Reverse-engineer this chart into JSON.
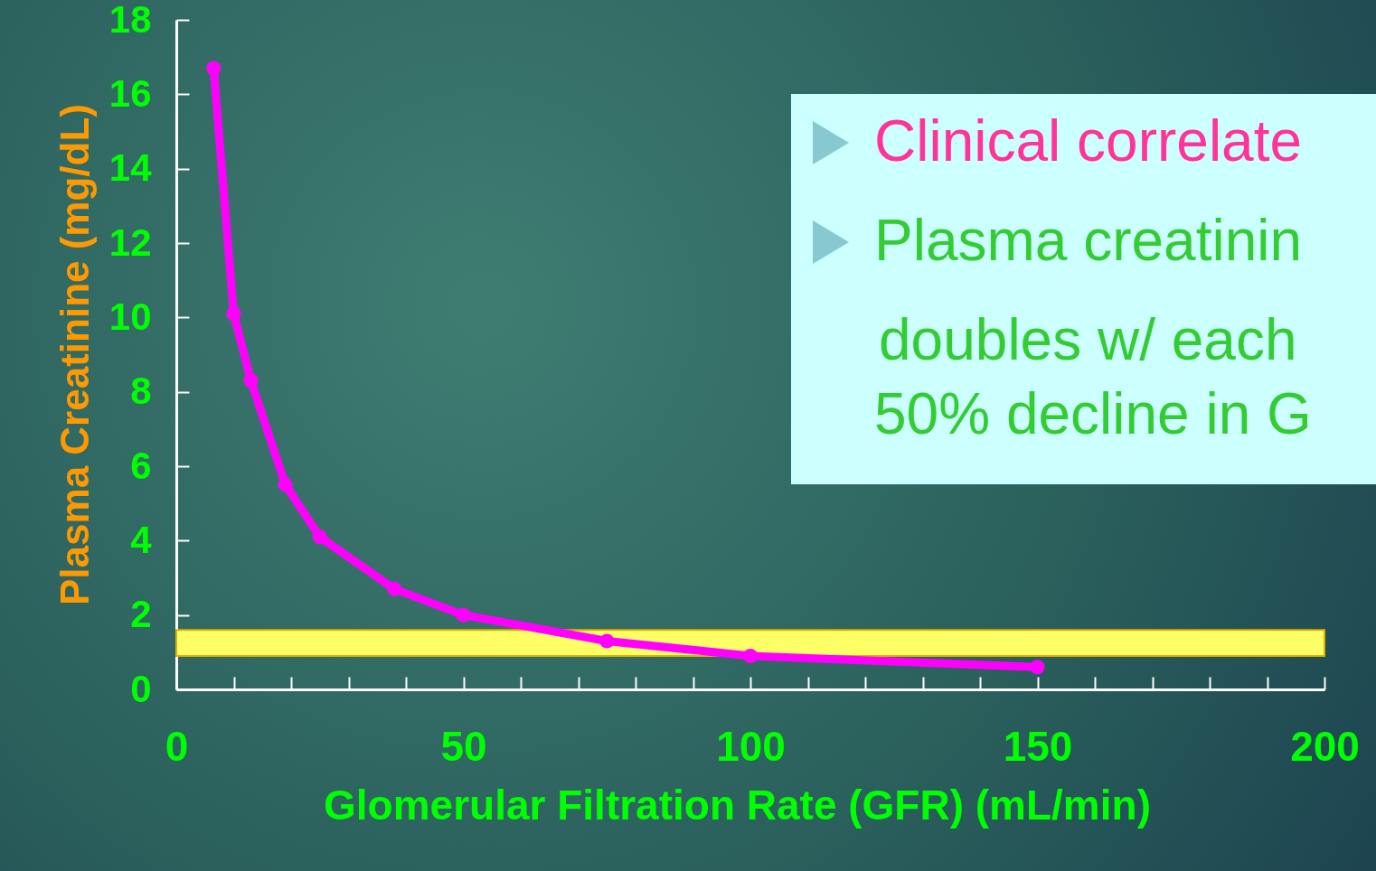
{
  "chart_data": {
    "type": "line",
    "xlabel": "Glomerular Filtration Rate (GFR) (mL/min)",
    "ylabel": "Plasma Creatinine (mg/dL)",
    "x": [
      6.5,
      10,
      13,
      19,
      25,
      38,
      50,
      75,
      100,
      150
    ],
    "series": [
      {
        "color": "#ff00ff",
        "values": [
          16.7,
          10.1,
          8.3,
          5.5,
          4.1,
          2.7,
          2.0,
          1.3,
          0.9,
          0.6
        ]
      }
    ],
    "xlim": [
      0,
      200
    ],
    "xticks": [
      0,
      {
        "value": 10,
        "label": null
      },
      {
        "value": 20,
        "label": null
      },
      {
        "value": 30,
        "label": null
      },
      {
        "value": 40,
        "label": null
      },
      50,
      {
        "value": 60,
        "label": null
      },
      {
        "value": 70,
        "label": null
      },
      {
        "value": 80,
        "label": null
      },
      {
        "value": 90,
        "label": null
      },
      100,
      {
        "value": 110,
        "label": null
      },
      {
        "value": 120,
        "label": null
      },
      {
        "value": 130,
        "label": null
      },
      {
        "value": 140,
        "label": null
      },
      150,
      {
        "value": 160,
        "label": null
      },
      {
        "value": 170,
        "label": null
      },
      {
        "value": 180,
        "label": null
      },
      {
        "value": 190,
        "label": null
      },
      200
    ],
    "ylim": [
      0,
      18
    ],
    "yticks": [
      0,
      2,
      4,
      6,
      8,
      10,
      12,
      14,
      16,
      18
    ],
    "bands": [
      {
        "axis": "y",
        "from": 0.9,
        "to": 1.6,
        "color": "#ffff66"
      }
    ],
    "marker": "circle",
    "line_style": "solid",
    "grid": false,
    "annotations": [
      "Clinical correlate",
      "Plasma creatinin",
      "doubles w/ each",
      "50% decline in G"
    ]
  }
}
